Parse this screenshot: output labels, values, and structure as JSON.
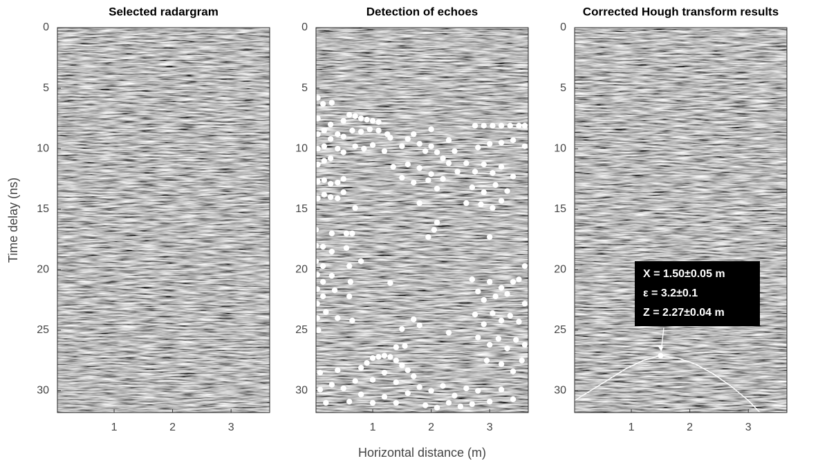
{
  "chart_data": [
    {
      "type": "image",
      "title": "Selected radargram",
      "ylabel": "Time delay (ns)",
      "xlim": [
        0.03,
        3.66
      ],
      "ylim": [
        0,
        31.8
      ],
      "y_reversed": true,
      "xticks": [
        1,
        2,
        3
      ],
      "yticks": [
        0,
        5,
        10,
        15,
        20,
        25,
        30
      ]
    },
    {
      "type": "scatter",
      "title": "Detection of echoes",
      "xlabel": "Horizontal distance (m)",
      "xlim": [
        0.03,
        3.66
      ],
      "ylim": [
        0,
        31.8
      ],
      "y_reversed": true,
      "xticks": [
        1,
        2,
        3
      ],
      "yticks": [
        0,
        5,
        10,
        15,
        20,
        25,
        30
      ],
      "color": "#ffffff",
      "x": [
        0.06,
        0.15,
        0.3,
        0.06,
        0.06,
        0.06,
        0.06,
        0.06,
        0.06,
        0.17,
        0.17,
        0.17,
        0.17,
        0.17,
        0.28,
        0.28,
        0.28,
        0.28,
        0.28,
        0.4,
        0.4,
        0.4,
        0.4,
        0.5,
        0.5,
        0.5,
        0.5,
        0.5,
        0.6,
        0.7,
        0.8,
        0.9,
        1.0,
        1.1,
        0.65,
        0.8,
        0.95,
        1.1,
        1.25,
        0.7,
        0.85,
        1.0,
        1.2,
        1.3,
        0.7,
        1.35,
        1.5,
        1.6,
        1.7,
        1.8,
        1.9,
        2.0,
        2.0,
        2.1,
        2.2,
        2.3,
        2.4,
        1.6,
        1.8,
        2.0,
        2.2,
        2.3,
        2.45,
        1.5,
        1.7,
        1.95,
        2.1,
        1.8,
        2.1,
        2.05,
        1.95,
        2.75,
        2.9,
        3.05,
        3.2,
        3.35,
        3.5,
        3.6,
        2.8,
        3.0,
        3.2,
        3.4,
        3.6,
        2.6,
        2.75,
        2.9,
        3.05,
        3.2,
        3.4,
        2.7,
        2.9,
        3.1,
        3.3,
        2.6,
        2.85,
        3.05,
        3.2,
        3.0,
        0.03,
        0.03,
        0.03,
        0.05,
        0.05,
        0.05,
        0.05,
        0.07,
        0.15,
        0.15,
        0.15,
        0.15,
        0.2,
        0.3,
        0.3,
        0.3,
        0.35,
        0.4,
        0.55,
        0.55,
        0.65,
        0.6,
        0.62,
        0.6,
        0.65,
        0.8,
        1.3,
        2.7,
        2.8,
        2.9,
        3.0,
        3.1,
        3.2,
        3.3,
        3.4,
        3.5,
        3.6,
        2.75,
        2.9,
        3.05,
        3.2,
        3.35,
        3.5,
        3.6,
        2.8,
        3.0,
        3.15,
        3.3,
        3.45,
        3.6,
        2.95,
        3.2,
        3.4,
        3.55,
        0.1,
        0.1,
        0.2,
        0.3,
        0.4,
        0.5,
        0.6,
        0.7,
        0.8,
        0.9,
        1.0,
        1.1,
        1.2,
        1.3,
        1.4,
        1.5,
        1.6,
        1.7,
        0.8,
        1.0,
        1.2,
        1.4,
        1.0,
        1.2,
        1.4,
        1.6,
        1.8,
        2.0,
        2.2,
        2.4,
        2.6,
        1.9,
        2.1,
        2.3,
        2.5,
        2.8,
        3.0,
        3.2,
        3.4,
        2.7,
        1.5,
        1.7,
        1.8,
        1.4,
        1.55,
        2.3
      ],
      "y": [
        5.8,
        6.3,
        6.2,
        7.5,
        8.8,
        10,
        11.3,
        12.7,
        14.1,
        8.5,
        9.8,
        11,
        12.6,
        13.8,
        8,
        9.2,
        10.8,
        12.9,
        14,
        8.8,
        10,
        12.8,
        14.1,
        7.7,
        9,
        10.3,
        12.5,
        13.6,
        7.2,
        7.3,
        7.5,
        7.6,
        7.7,
        7.8,
        8.5,
        8.6,
        8.4,
        8.5,
        8.8,
        9.8,
        10,
        9.7,
        10.2,
        9.1,
        14.9,
        11.5,
        9.8,
        9.2,
        8.8,
        9.6,
        10.2,
        8.4,
        9.8,
        10.3,
        10.8,
        9.3,
        10.2,
        11.3,
        11.6,
        12.1,
        12.5,
        11.2,
        11.9,
        12.4,
        12.8,
        12.6,
        13.3,
        14.5,
        16.1,
        16.7,
        17.3,
        8.1,
        8.1,
        8.1,
        8.1,
        8.1,
        8.1,
        8.1,
        9.9,
        9.6,
        9.5,
        9.3,
        9.8,
        11.2,
        11.9,
        11.3,
        12,
        11.5,
        12.3,
        13.2,
        13.6,
        13,
        13.5,
        14.5,
        14.6,
        14.9,
        14.3,
        17.3,
        16.7,
        18,
        19.3,
        20.4,
        21.6,
        22.8,
        24,
        25,
        18.1,
        19.7,
        21,
        22.2,
        23.5,
        17,
        18.5,
        20.5,
        21.7,
        24,
        17,
        18.2,
        17,
        19.7,
        21,
        22.2,
        24.2,
        19.3,
        21.1,
        20.8,
        21.8,
        22.5,
        21,
        22.2,
        21.5,
        22,
        21,
        20.8,
        19.7,
        23.7,
        24.5,
        23.6,
        24.2,
        23.8,
        24.3,
        22.8,
        25.6,
        26.2,
        25.7,
        26.5,
        25.8,
        26.2,
        27.5,
        27.8,
        28.4,
        27.5,
        28.5,
        29.9,
        31,
        29.5,
        28.3,
        29.8,
        30.9,
        29.2,
        28.1,
        27.7,
        27.3,
        27.2,
        27.1,
        27.2,
        27.5,
        27.9,
        28.3,
        28.8,
        30.3,
        29.1,
        28.5,
        29.3,
        31,
        30.5,
        31,
        30.2,
        29.7,
        30,
        29.6,
        30.4,
        29.8,
        31.2,
        31.4,
        31,
        31.3,
        30,
        30.9,
        29.9,
        30.7,
        31.1,
        24.9,
        24.1,
        24.6,
        26.4,
        26.3,
        25.2
      ]
    },
    {
      "type": "line",
      "title": "Corrected Hough transform results",
      "xlim": [
        0.03,
        3.66
      ],
      "ylim": [
        0,
        31.8
      ],
      "y_reversed": true,
      "xticks": [
        1,
        2,
        3
      ],
      "yticks": [
        0,
        5,
        10,
        15,
        20,
        25,
        30
      ],
      "color": "#ffffff",
      "x": [
        0.03,
        0.3,
        0.6,
        0.9,
        1.2,
        1.5,
        1.8,
        2.1,
        2.4,
        2.7,
        3.0,
        3.2
      ],
      "values": [
        30.8,
        30.0,
        29.1,
        28.2,
        27.5,
        27.1,
        27.3,
        27.8,
        28.6,
        29.6,
        30.8,
        31.8
      ],
      "marker": {
        "x": 1.5,
        "y": 27.1
      },
      "annotation": [
        "X = 1.50±0.05 m",
        "ε = 3.2±0.1",
        "Z = 2.27±0.04 m"
      ]
    }
  ]
}
